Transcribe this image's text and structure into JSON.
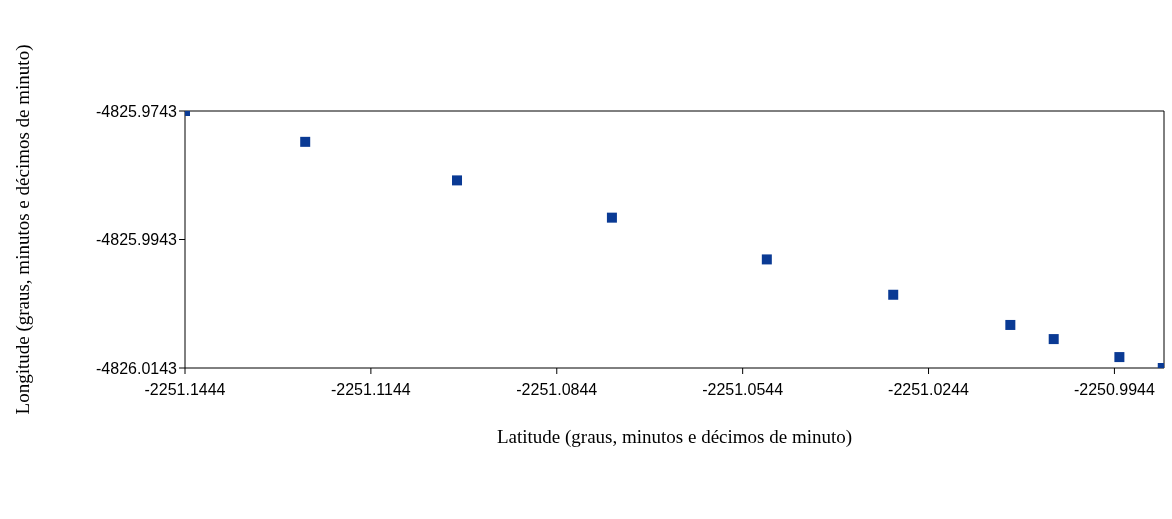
{
  "chart_data": {
    "type": "scatter",
    "xlabel": "Latitude (graus, minutos e décimos de minuto)",
    "ylabel": "Longitude (graus, minutos e décimos de minuto)",
    "x": [
      -2251.1444,
      -2251.125,
      -2251.1005,
      -2251.0755,
      -2251.0505,
      -2251.0301,
      -2251.0112,
      -2251.0042,
      -2250.9936,
      -2250.9866
    ],
    "series": [
      {
        "color": "#0a3a94",
        "values": [
          -4825.9743,
          -4825.9791,
          -4825.9851,
          -4825.9909,
          -4825.9974,
          -4826.0029,
          -4826.0076,
          -4826.0098,
          -4826.0126,
          -4826.0143
        ]
      }
    ],
    "xlim": [
      -2251.1444,
      -2250.9864
    ],
    "xticks": [
      -2251.1444,
      -2251.1144,
      -2251.0844,
      -2251.0544,
      -2251.0244,
      -2250.9944
    ],
    "ylim": [
      -4826.0143,
      -4825.9743
    ],
    "yticks": [
      -4826.0143,
      -4825.9943,
      -4825.9743
    ],
    "grid": false,
    "legend": false,
    "marker": "square"
  }
}
